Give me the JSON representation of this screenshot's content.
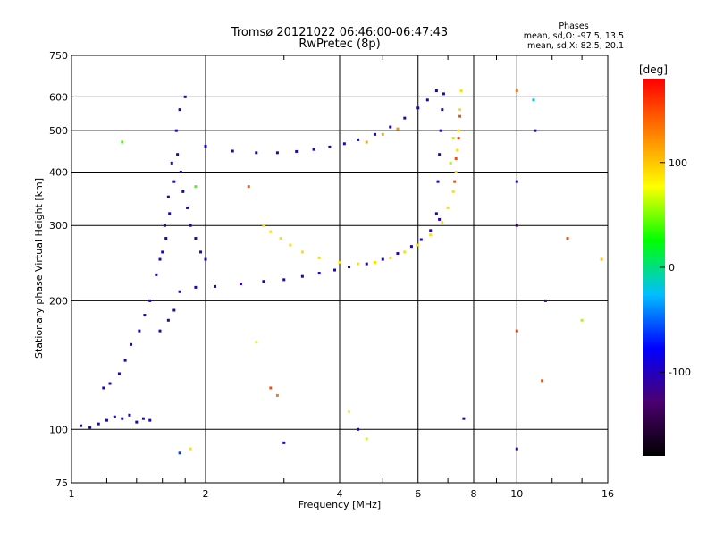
{
  "chart_data": {
    "type": "scatter",
    "title": "Tromsø 20121022 06:46:00-06:47:43",
    "subtitle": "RwPretec (8p)",
    "xlabel": "Frequency [MHz]",
    "ylabel": "Stationary phase Virtual Height [km]",
    "xscale": "log",
    "yscale": "log",
    "xlim": [
      1,
      16
    ],
    "ylim": [
      75,
      750
    ],
    "x_ticks": [
      1,
      2,
      4,
      6,
      8,
      10,
      16
    ],
    "y_ticks": [
      75,
      100,
      200,
      300,
      400,
      500,
      600,
      750
    ],
    "grid": true,
    "stats": {
      "title": "Phases",
      "line1": "mean, sd,O: -97.5, 13.5",
      "line2": "mean, sd,X:  82.5, 20.1"
    },
    "colorbar": {
      "label": "[deg]",
      "range": [
        -180,
        180
      ],
      "ticks": [
        100,
        0,
        -100
      ],
      "colors": [
        "#000000",
        "#4b006e",
        "#0000ff",
        "#00bfff",
        "#00ff00",
        "#ffff00",
        "#ff8000",
        "#ff0000"
      ]
    },
    "series": [
      {
        "points": [
          [
            1.05,
            102,
            -100
          ],
          [
            1.1,
            101,
            -100
          ],
          [
            1.15,
            103,
            -100
          ],
          [
            1.2,
            105,
            -100
          ],
          [
            1.25,
            107,
            -100
          ],
          [
            1.3,
            106,
            -100
          ],
          [
            1.35,
            108,
            -100
          ],
          [
            1.4,
            104,
            -100
          ],
          [
            1.45,
            106,
            -100
          ],
          [
            1.5,
            105,
            -100
          ],
          [
            1.18,
            125,
            -100
          ],
          [
            1.22,
            128,
            -100
          ],
          [
            1.28,
            135,
            -100
          ],
          [
            1.32,
            145,
            -100
          ],
          [
            1.36,
            158,
            -100
          ],
          [
            1.42,
            170,
            -100
          ],
          [
            1.46,
            185,
            -100
          ],
          [
            1.5,
            200,
            -100
          ],
          [
            1.55,
            230,
            -100
          ],
          [
            1.58,
            250,
            -100
          ],
          [
            1.62,
            300,
            -100
          ],
          [
            1.65,
            350,
            -100
          ],
          [
            1.68,
            420,
            -100
          ],
          [
            1.72,
            500,
            -100
          ],
          [
            1.75,
            560,
            -100
          ],
          [
            1.8,
            600,
            -100
          ],
          [
            1.6,
            260,
            -100
          ],
          [
            1.63,
            280,
            -100
          ],
          [
            1.66,
            320,
            -100
          ],
          [
            1.7,
            380,
            -100
          ],
          [
            1.73,
            440,
            -100
          ],
          [
            1.76,
            400,
            -100
          ],
          [
            1.78,
            360,
            -100
          ],
          [
            1.82,
            330,
            -100
          ],
          [
            1.85,
            300,
            -100
          ],
          [
            1.9,
            280,
            -100
          ],
          [
            1.95,
            260,
            -100
          ],
          [
            2.0,
            250,
            -100
          ],
          [
            1.65,
            180,
            -100
          ],
          [
            1.7,
            190,
            -100
          ],
          [
            1.75,
            210,
            -100
          ],
          [
            1.58,
            170,
            -100
          ],
          [
            1.9,
            215,
            -100
          ],
          [
            2.1,
            216,
            -100
          ],
          [
            2.4,
            219,
            -100
          ],
          [
            2.7,
            222,
            -100
          ],
          [
            3.0,
            224,
            -100
          ],
          [
            3.3,
            228,
            -100
          ],
          [
            3.6,
            232,
            -100
          ],
          [
            3.9,
            236,
            -100
          ],
          [
            4.2,
            240,
            -100
          ],
          [
            4.6,
            244,
            -100
          ],
          [
            5.0,
            250,
            -100
          ],
          [
            5.4,
            258,
            -100
          ],
          [
            5.8,
            268,
            -100
          ],
          [
            6.1,
            278,
            -100
          ],
          [
            6.4,
            292,
            -100
          ],
          [
            6.7,
            310,
            -100
          ],
          [
            2.0,
            460,
            -100
          ],
          [
            2.3,
            448,
            -100
          ],
          [
            2.6,
            444,
            -100
          ],
          [
            2.9,
            444,
            -100
          ],
          [
            3.2,
            447,
            -100
          ],
          [
            3.5,
            452,
            -100
          ],
          [
            3.8,
            458,
            -100
          ],
          [
            4.1,
            466,
            -100
          ],
          [
            4.4,
            476,
            -100
          ],
          [
            4.8,
            490,
            -100
          ],
          [
            5.2,
            510,
            -100
          ],
          [
            5.6,
            535,
            -100
          ],
          [
            6.0,
            565,
            -100
          ],
          [
            6.3,
            590,
            -100
          ],
          [
            6.6,
            620,
            -100
          ],
          [
            6.6,
            320,
            -100
          ],
          [
            6.65,
            380,
            -100
          ],
          [
            6.7,
            440,
            -100
          ],
          [
            6.75,
            500,
            -100
          ],
          [
            6.8,
            560,
            -100
          ],
          [
            6.85,
            610,
            -100
          ]
        ]
      },
      {
        "points": [
          [
            2.7,
            300,
            90
          ],
          [
            2.8,
            290,
            90
          ],
          [
            2.95,
            280,
            90
          ],
          [
            3.1,
            270,
            90
          ],
          [
            3.3,
            260,
            90
          ],
          [
            3.6,
            252,
            90
          ],
          [
            4.0,
            246,
            90
          ],
          [
            4.4,
            244,
            90
          ],
          [
            4.8,
            246,
            90
          ],
          [
            5.2,
            252,
            90
          ],
          [
            5.6,
            260,
            90
          ],
          [
            6.0,
            270,
            90
          ],
          [
            6.4,
            285,
            90
          ],
          [
            6.8,
            305,
            90
          ],
          [
            7.0,
            330,
            90
          ],
          [
            7.2,
            360,
            90
          ],
          [
            7.3,
            400,
            90
          ],
          [
            7.35,
            450,
            90
          ],
          [
            7.4,
            500,
            90
          ],
          [
            7.45,
            560,
            90
          ],
          [
            7.5,
            620,
            90
          ],
          [
            7.25,
            380,
            150
          ],
          [
            7.3,
            430,
            150
          ],
          [
            7.4,
            480,
            160
          ],
          [
            7.45,
            540,
            150
          ],
          [
            7.1,
            420,
            60
          ],
          [
            7.2,
            480,
            60
          ],
          [
            4.6,
            470,
            110
          ],
          [
            5.0,
            490,
            110
          ],
          [
            5.4,
            505,
            120
          ]
        ]
      },
      {
        "points": [
          [
            1.3,
            470,
            40
          ],
          [
            2.5,
            370,
            140
          ],
          [
            2.6,
            160,
            70
          ],
          [
            2.8,
            125,
            150
          ],
          [
            2.9,
            120,
            130
          ],
          [
            3.0,
            93,
            -100
          ],
          [
            4.2,
            110,
            80
          ],
          [
            4.4,
            100,
            -90
          ],
          [
            4.6,
            95,
            70
          ],
          [
            7.6,
            106,
            -100
          ],
          [
            10.0,
            620,
            130
          ],
          [
            10.0,
            380,
            -100
          ],
          [
            10.0,
            300,
            -120
          ],
          [
            10.0,
            170,
            160
          ],
          [
            10.0,
            90,
            -110
          ],
          [
            10.9,
            590,
            -20
          ],
          [
            11.0,
            500,
            -110
          ],
          [
            11.4,
            130,
            150
          ],
          [
            11.6,
            200,
            -120
          ],
          [
            13.0,
            280,
            150
          ],
          [
            14.0,
            180,
            60
          ],
          [
            15.5,
            250,
            100
          ],
          [
            1.85,
            90,
            90
          ],
          [
            1.75,
            88,
            -60
          ],
          [
            1.9,
            370,
            40
          ]
        ]
      }
    ]
  }
}
